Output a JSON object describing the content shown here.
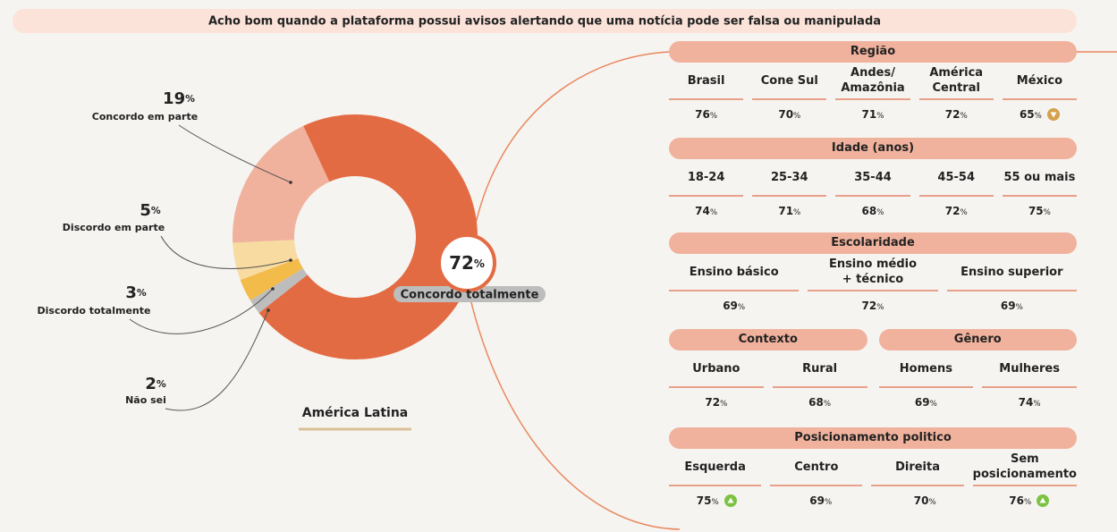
{
  "title": "Acho bom quando a plataforma possui avisos alertando que uma notícia pode ser falsa ou manipulada",
  "unit": "%",
  "chart_data": {
    "type": "donut",
    "title": "América Latina",
    "categories": [
      "Concordo totalmente",
      "Não sei",
      "Discordo totalmente",
      "Discordo em parte",
      "Concordo em parte"
    ],
    "values": [
      72,
      2,
      3,
      5,
      19
    ],
    "colors": [
      "#e36b43",
      "#bdbdbd",
      "#f2bb4a",
      "#f8dba0",
      "#f0b29d"
    ]
  },
  "breakdown": [
    [
      {
        "title": "Região",
        "categories": [
          "Brasil",
          "Cone Sul",
          "Andes/\nAmazônia",
          "América\nCentral",
          "México"
        ],
        "values": [
          76,
          70,
          71,
          72,
          65
        ],
        "trend": [
          null,
          null,
          null,
          null,
          "down"
        ]
      }
    ],
    [
      {
        "title": "Idade (anos)",
        "categories": [
          "18-24",
          "25-34",
          "35-44",
          "45-54",
          "55 ou mais"
        ],
        "values": [
          74,
          71,
          68,
          72,
          75
        ],
        "trend": [
          null,
          null,
          null,
          null,
          null
        ]
      }
    ],
    [
      {
        "title": "Escolaridade",
        "categories": [
          "Ensino básico",
          "Ensino médio\n+ técnico",
          "Ensino superior"
        ],
        "values": [
          69,
          72,
          69
        ],
        "trend": [
          null,
          null,
          null
        ]
      }
    ],
    [
      {
        "title": "Contexto",
        "categories": [
          "Urbano",
          "Rural"
        ],
        "values": [
          72,
          68
        ],
        "trend": [
          null,
          null
        ]
      },
      {
        "title": "Gênero",
        "categories": [
          "Homens",
          "Mulheres"
        ],
        "values": [
          69,
          74
        ],
        "trend": [
          null,
          null
        ]
      }
    ],
    [
      {
        "title": "Posicionamento politico",
        "categories": [
          "Esquerda",
          "Centro",
          "Direita",
          "Sem\nposicionamento"
        ],
        "values": [
          75,
          69,
          70,
          76
        ],
        "trend": [
          "up",
          null,
          null,
          "up"
        ]
      }
    ]
  ]
}
